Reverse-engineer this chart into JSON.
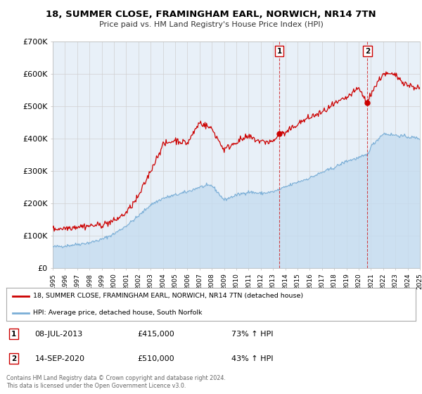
{
  "title": "18, SUMMER CLOSE, FRAMINGHAM EARL, NORWICH, NR14 7TN",
  "subtitle": "Price paid vs. HM Land Registry's House Price Index (HPI)",
  "legend_label1": "18, SUMMER CLOSE, FRAMINGHAM EARL, NORWICH, NR14 7TN (detached house)",
  "legend_label2": "HPI: Average price, detached house, South Norfolk",
  "note1_date": "08-JUL-2013",
  "note1_price": "£415,000",
  "note1_hpi": "73% ↑ HPI",
  "note2_date": "14-SEP-2020",
  "note2_price": "£510,000",
  "note2_hpi": "43% ↑ HPI",
  "footer": "Contains HM Land Registry data © Crown copyright and database right 2024.\nThis data is licensed under the Open Government Licence v3.0.",
  "red_color": "#cc0000",
  "blue_color": "#7aaed6",
  "blue_fill": "#c5dcf0",
  "bg_color": "#e8f0f8",
  "fig_bg": "#ffffff",
  "grid_color": "#d0d0d0",
  "ylim": [
    0,
    700000
  ],
  "yticks": [
    0,
    100000,
    200000,
    300000,
    400000,
    500000,
    600000,
    700000
  ],
  "ytick_labels": [
    "£0",
    "£100K",
    "£200K",
    "£300K",
    "£400K",
    "£500K",
    "£600K",
    "£700K"
  ],
  "sale1_x": 2013.52,
  "sale1_y": 415000,
  "sale2_x": 2020.71,
  "sale2_y": 510000,
  "xmin": 1995,
  "xmax": 2025
}
